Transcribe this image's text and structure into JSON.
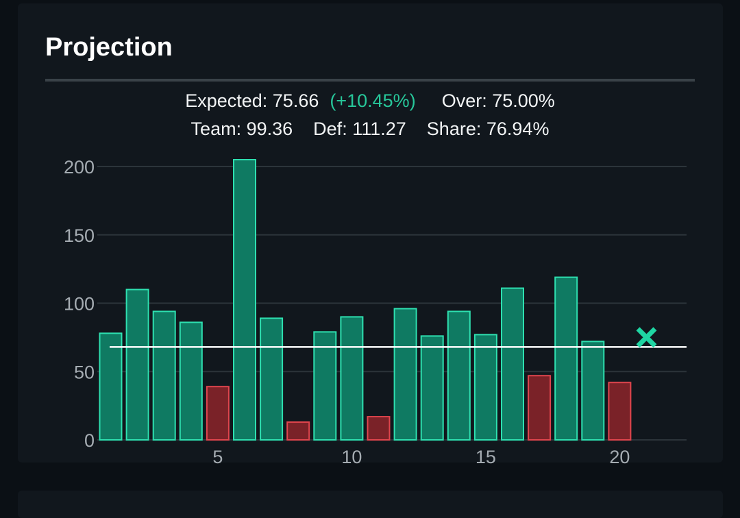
{
  "title": "Projection",
  "stats": {
    "expected_label": "Expected:",
    "expected_value": "75.66",
    "expected_change": "(+10.45%)",
    "over_label": "Over:",
    "over_value": "75.00%",
    "team_label": "Team:",
    "team_value": "99.36",
    "def_label": "Def:",
    "def_value": "111.27",
    "share_label": "Share:",
    "share_value": "76.94%"
  },
  "colors": {
    "over": "#0f7a62",
    "over_border": "#2ee0b0",
    "under": "#7a2228",
    "under_border": "#e0454d",
    "line": "#ffffff",
    "marker": "#1fd6a3",
    "grid": "#2c343a",
    "positive_text": "#27c79a"
  },
  "chart_data": {
    "type": "bar",
    "x": [
      1,
      2,
      3,
      4,
      5,
      6,
      7,
      8,
      9,
      10,
      11,
      12,
      13,
      14,
      15,
      16,
      17,
      18,
      19,
      20
    ],
    "values": [
      78,
      110,
      94,
      86,
      39,
      205,
      89,
      13,
      79,
      90,
      17,
      96,
      76,
      94,
      77,
      111,
      47,
      119,
      72,
      42
    ],
    "status": [
      "over",
      "over",
      "over",
      "over",
      "under",
      "over",
      "over",
      "under",
      "over",
      "over",
      "under",
      "over",
      "over",
      "over",
      "over",
      "over",
      "under",
      "over",
      "over",
      "under"
    ],
    "threshold_line": 68,
    "projection_marker": {
      "x": 21,
      "y": 75
    },
    "yticks": [
      0,
      50,
      100,
      150,
      200
    ],
    "xticks": [
      5,
      10,
      15,
      20
    ],
    "ylim": [
      0,
      205
    ],
    "xlim": [
      0.5,
      22.5
    ],
    "grid": true,
    "title": "",
    "xlabel": "",
    "ylabel": ""
  }
}
